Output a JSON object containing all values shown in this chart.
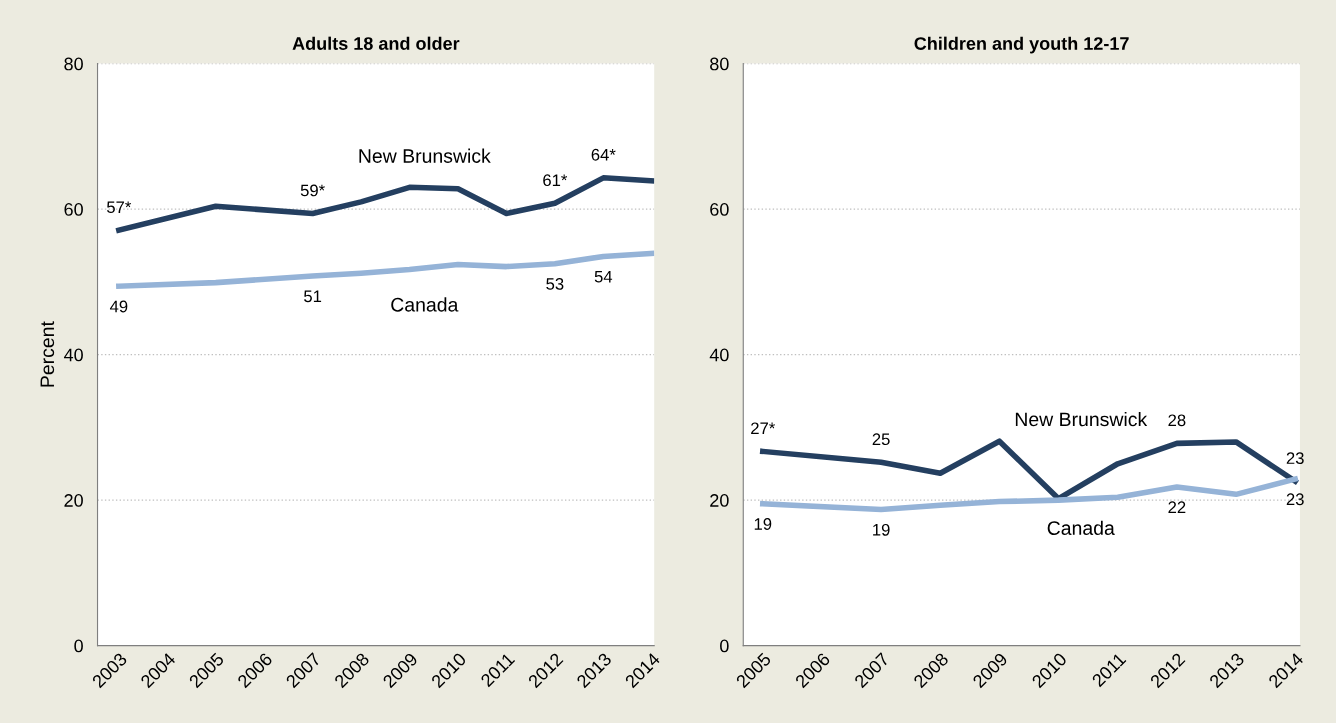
{
  "chart_data": [
    {
      "type": "line",
      "title": "Adults 18 and older",
      "ylabel": "Percent",
      "xlim": [
        2002.56,
        2014.05
      ],
      "xticks": [
        2003,
        2004,
        2005,
        2006,
        2007,
        2008,
        2009,
        2010,
        2011,
        2012,
        2013,
        2014
      ],
      "ylim": [
        0,
        80
      ],
      "yticks": [
        0,
        20,
        40,
        60,
        80
      ],
      "grid": "y",
      "legend": false,
      "marker": "none",
      "line_style": "solid",
      "series": [
        {
          "name": "New Brunswick",
          "color": "#243f60",
          "x": [
            2003,
            2005,
            2007,
            2008,
            2009,
            2010,
            2011,
            2012,
            2013,
            2014
          ],
          "values": [
            57.1,
            60.4,
            59.4,
            61.0,
            63.0,
            62.8,
            59.4,
            60.8,
            64.3,
            63.9
          ],
          "value_labels": [
            "57*",
            null,
            "59*",
            null,
            null,
            null,
            null,
            "61*",
            "64*",
            null
          ]
        },
        {
          "name": "Canada",
          "color": "#95b3d7",
          "x": [
            2003,
            2005,
            2007,
            2008,
            2009,
            2010,
            2011,
            2012,
            2013,
            2014
          ],
          "values": [
            49.4,
            49.9,
            50.8,
            51.2,
            51.7,
            52.4,
            52.1,
            52.5,
            53.5,
            53.9
          ],
          "value_labels": [
            "49",
            null,
            "51",
            null,
            null,
            null,
            null,
            "53",
            "54",
            null
          ]
        }
      ]
    },
    {
      "type": "line",
      "title": "Children and youth 12-17",
      "xlim": [
        2004.67,
        2014.08
      ],
      "xticks": [
        2005,
        2006,
        2007,
        2008,
        2009,
        2010,
        2011,
        2012,
        2013,
        2014
      ],
      "ylim": [
        0,
        80
      ],
      "yticks": [
        0,
        20,
        40,
        60,
        80
      ],
      "grid": "y",
      "legend": false,
      "marker": "none",
      "line_style": "solid",
      "series": [
        {
          "name": "New Brunswick",
          "color": "#243f60",
          "x": [
            2005,
            2007,
            2008,
            2009,
            2010,
            2011,
            2012,
            2013,
            2014
          ],
          "values": [
            26.7,
            25.2,
            23.7,
            28.1,
            20.2,
            25.0,
            27.8,
            28.0,
            22.6
          ],
          "value_labels": [
            "27*",
            "25",
            null,
            null,
            null,
            null,
            "28",
            null,
            "23"
          ]
        },
        {
          "name": "Canada",
          "color": "#95b3d7",
          "x": [
            2005,
            2007,
            2008,
            2009,
            2010,
            2011,
            2012,
            2013,
            2014
          ],
          "values": [
            19.5,
            18.7,
            19.3,
            19.8,
            20.0,
            20.4,
            21.8,
            20.8,
            22.9
          ],
          "value_labels": [
            "19",
            "19",
            null,
            null,
            null,
            null,
            "22",
            null,
            "23"
          ]
        }
      ]
    }
  ]
}
